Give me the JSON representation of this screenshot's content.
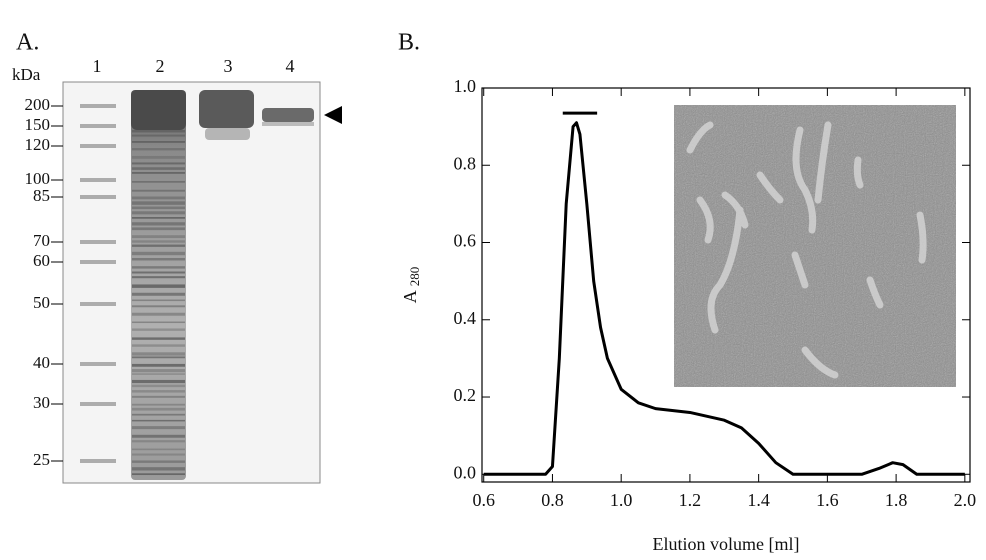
{
  "gel": {
    "panel_label": "A.",
    "unit": "kDa",
    "lanes": [
      "1",
      "2",
      "3",
      "4"
    ],
    "markers": [
      200,
      150,
      120,
      100,
      85,
      70,
      60,
      50,
      40,
      30,
      25
    ]
  },
  "chart_data": {
    "type": "line",
    "panel_label": "B.",
    "xlabel": "Elution volume [ml]",
    "ylabel": {
      "main": "A",
      "sub": "280"
    },
    "x": [
      0.6,
      0.78,
      0.8,
      0.82,
      0.84,
      0.86,
      0.87,
      0.88,
      0.9,
      0.92,
      0.94,
      0.96,
      1.0,
      1.05,
      1.1,
      1.2,
      1.3,
      1.35,
      1.4,
      1.45,
      1.5,
      1.7,
      1.75,
      1.79,
      1.82,
      1.86,
      2.0
    ],
    "values": [
      0,
      0,
      0.02,
      0.3,
      0.7,
      0.9,
      0.91,
      0.88,
      0.7,
      0.5,
      0.38,
      0.3,
      0.22,
      0.185,
      0.17,
      0.16,
      0.14,
      0.12,
      0.08,
      0.03,
      0,
      0,
      0.015,
      0.03,
      0.025,
      0,
      0
    ],
    "color": "#000000",
    "fraction_bar": {
      "x": [
        0.83,
        0.93
      ],
      "y": 0.935
    },
    "xlim": [
      0.595,
      2.015
    ],
    "ylim": [
      -0.02,
      1.0
    ],
    "xticks": [
      0.6,
      0.8,
      {
        "value": 1,
        "label": "1.0"
      },
      1.2,
      1.4,
      1.6,
      1.8,
      {
        "value": 2,
        "label": "2.0"
      }
    ],
    "yticks": [
      {
        "value": 0,
        "label": "0.0"
      },
      0.2,
      0.4,
      0.6,
      0.8,
      {
        "value": 1,
        "label": "1.0"
      }
    ]
  }
}
